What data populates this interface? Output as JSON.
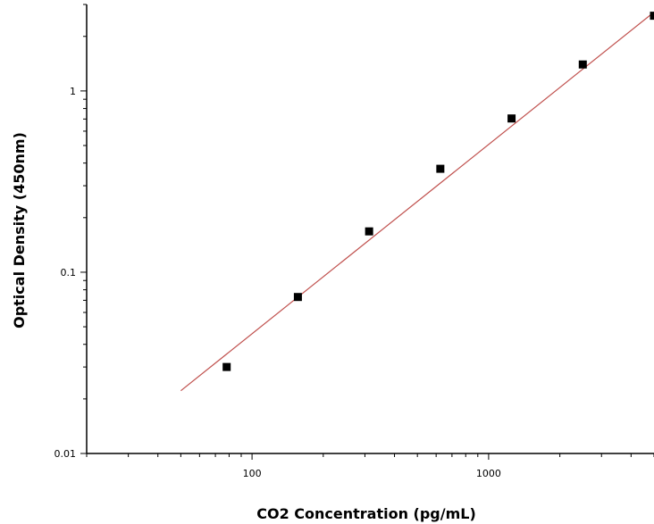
{
  "chart_data": {
    "type": "scatter",
    "xlabel": "CO2 Concentration (pg/mL)",
    "ylabel": "Optical Density (450nm)",
    "x_scale": "log",
    "y_scale": "log",
    "xlim": [
      20,
      5000
    ],
    "ylim": [
      0.01,
      3.0
    ],
    "x_tick_labels": [
      {
        "value": 100,
        "label": "100"
      },
      {
        "value": 1000,
        "label": "1000"
      }
    ],
    "y_tick_labels": [
      {
        "value": 0.01,
        "label": "0.01"
      },
      {
        "value": 0.1,
        "label": "0.1"
      },
      {
        "value": 1,
        "label": "1"
      }
    ],
    "grid": false,
    "legend": "none",
    "series": [
      {
        "kind": "points",
        "marker": "square",
        "color": "#000000",
        "x": [
          78.125,
          156.25,
          312.5,
          625,
          1250,
          2500,
          5000
        ],
        "y": [
          0.03,
          0.073,
          0.168,
          0.372,
          0.705,
          1.4,
          2.6
        ]
      },
      {
        "kind": "fit-line",
        "color": "#c0504d",
        "x": [
          50,
          5000
        ],
        "y": [
          0.0222,
          2.72
        ]
      }
    ]
  }
}
